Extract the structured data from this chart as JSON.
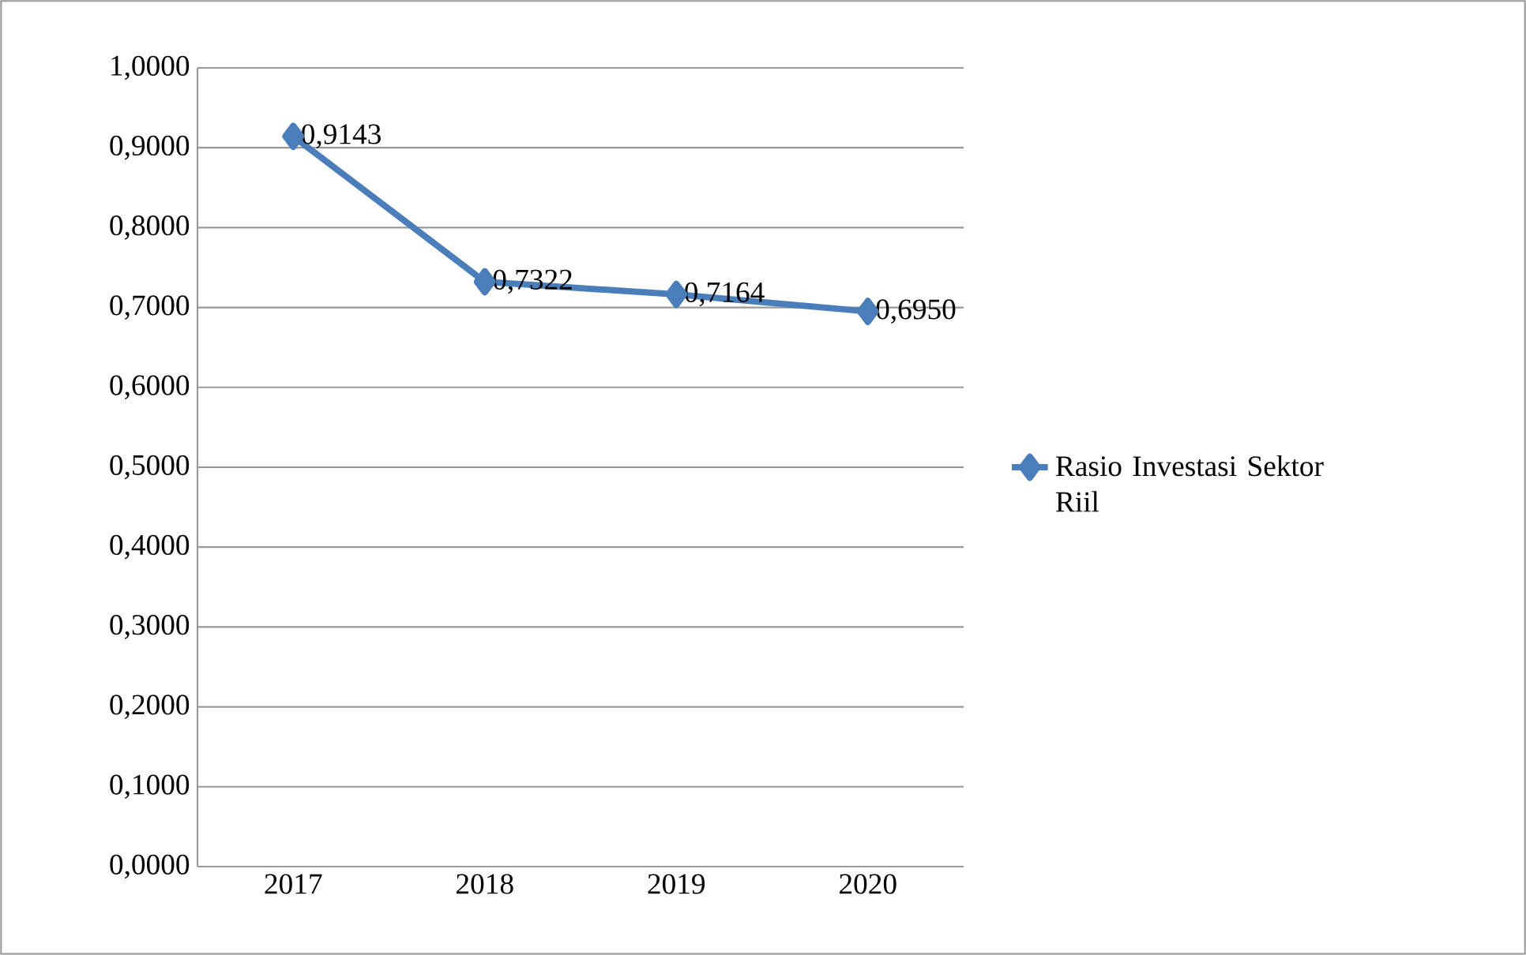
{
  "chart_data": {
    "type": "line",
    "categories": [
      "2017",
      "2018",
      "2019",
      "2020"
    ],
    "series": [
      {
        "name": "Rasio Investasi Sektor Riil",
        "color": "#4a7ebb",
        "values": [
          0.9143,
          0.7322,
          0.7164,
          0.695
        ],
        "value_labels": [
          "0,9143",
          "0,7322",
          "0,7164",
          "0,6950"
        ]
      }
    ],
    "ylim": [
      0,
      1
    ],
    "yticks": [
      {
        "value": 0,
        "label": "0,0000"
      },
      {
        "value": 0.1,
        "label": "0,1000"
      },
      {
        "value": 0.2,
        "label": "0,2000"
      },
      {
        "value": 0.3,
        "label": "0,3000"
      },
      {
        "value": 0.4,
        "label": "0,4000"
      },
      {
        "value": 0.5,
        "label": "0,5000"
      },
      {
        "value": 0.6,
        "label": "0,6000"
      },
      {
        "value": 0.7,
        "label": "0,7000"
      },
      {
        "value": 0.8,
        "label": "0,8000"
      },
      {
        "value": 0.9,
        "label": "0,9000"
      },
      {
        "value": 1,
        "label": "1,0000"
      }
    ],
    "grid": "y",
    "legend": "right",
    "marker": "diamond",
    "line_style": "solid"
  }
}
